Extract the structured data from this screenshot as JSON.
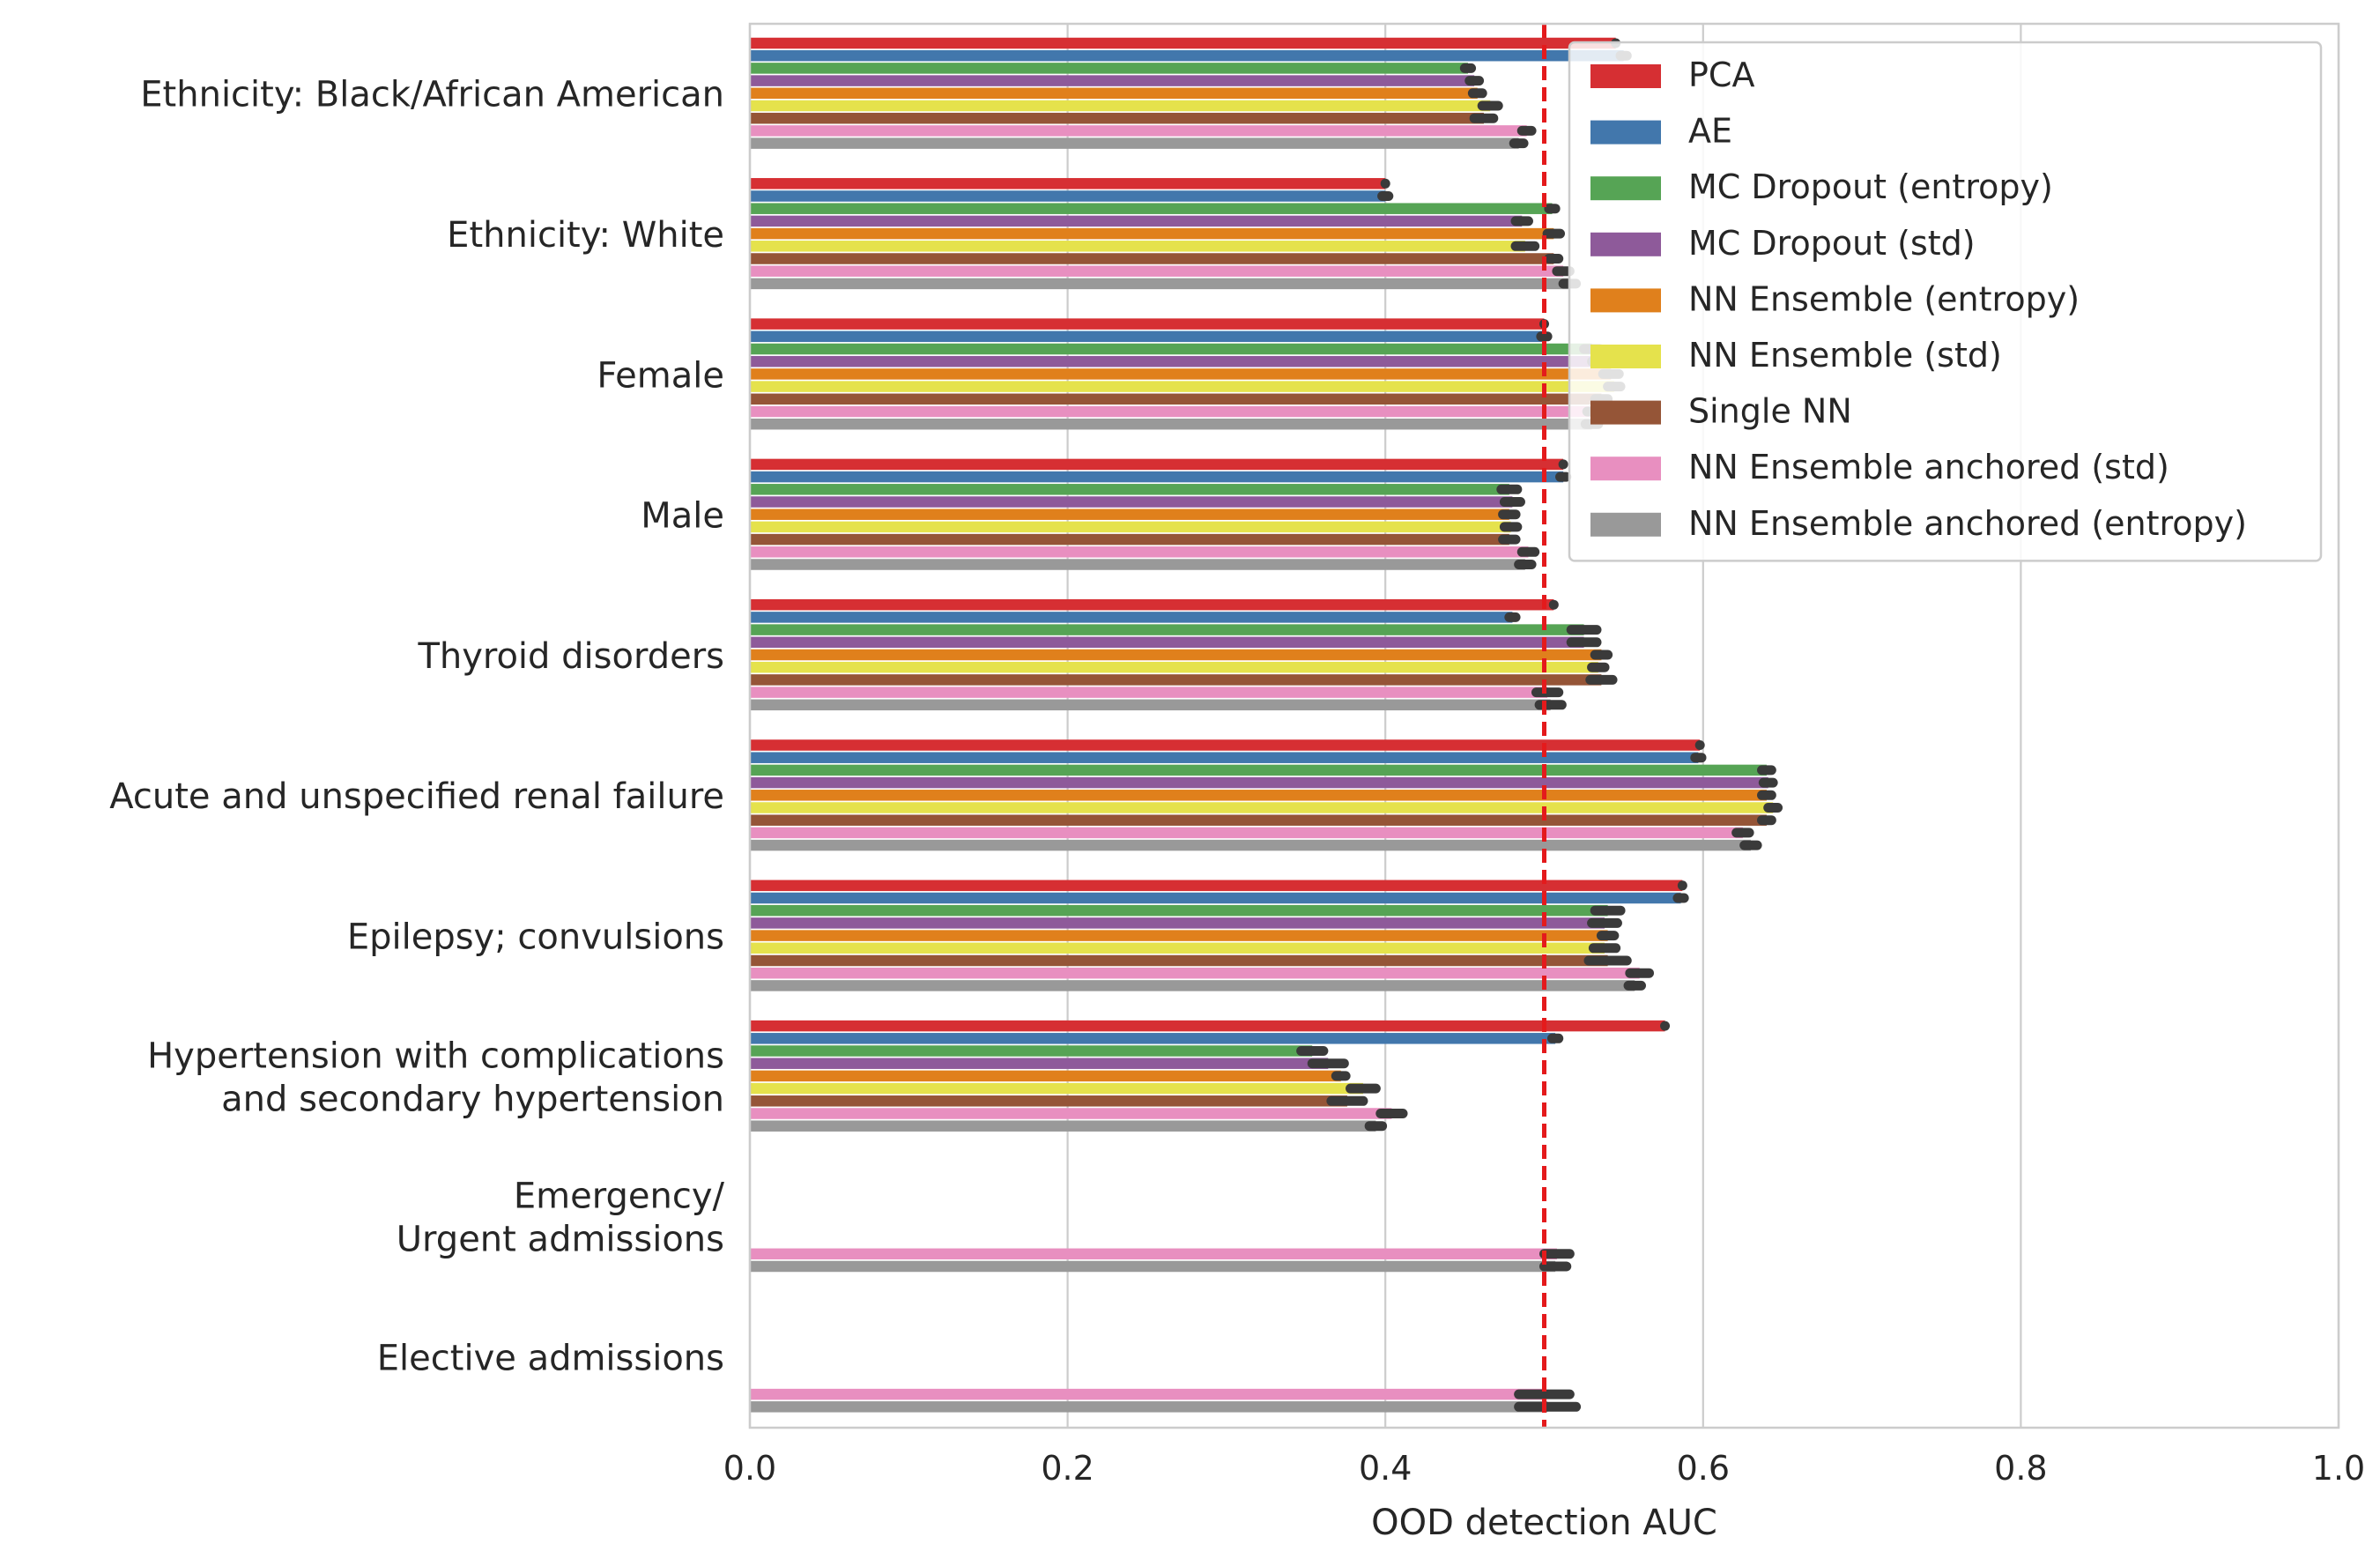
{
  "chart_data": {
    "type": "bar",
    "orientation": "horizontal",
    "xlabel": "OOD detection AUC",
    "ylabel": "",
    "title": "",
    "xlim": [
      0.0,
      1.0
    ],
    "xticks": [
      "0.0",
      "0.2",
      "0.4",
      "0.6",
      "0.8",
      "1.0"
    ],
    "grid": "vertical",
    "legend_position": "top-right",
    "reference_line": {
      "x": 0.5,
      "style": "dashed",
      "color": "#e41a1c"
    },
    "categories": [
      [
        "Ethnicity: Black/African American"
      ],
      [
        "Ethnicity: White"
      ],
      [
        "Female"
      ],
      [
        "Male"
      ],
      [
        "Thyroid disorders"
      ],
      [
        "Acute and unspecified renal failure"
      ],
      [
        "Epilepsy; convulsions"
      ],
      [
        "Hypertension with complications",
        "and secondary hypertension"
      ],
      [
        "Emergency/",
        "Urgent admissions"
      ],
      [
        "Elective admissions"
      ]
    ],
    "series": [
      {
        "name": "PCA",
        "color": "#d62f33",
        "values": [
          0.545,
          0.4,
          0.5,
          0.512,
          0.506,
          0.598,
          0.587,
          0.576,
          null,
          null
        ],
        "errors": [
          0,
          0,
          0,
          0,
          0,
          0,
          0,
          0,
          null,
          null
        ]
      },
      {
        "name": "AE",
        "color": "#4277ac",
        "values": [
          0.55,
          0.4,
          0.5,
          0.512,
          0.48,
          0.597,
          0.586,
          0.507,
          null,
          null
        ],
        "errors": [
          0.002,
          0.002,
          0.002,
          0.002,
          0.002,
          0.002,
          0.002,
          0.002,
          null,
          null
        ]
      },
      {
        "name": "MC Dropout (entropy)",
        "color": "#56a455",
        "values": [
          0.452,
          0.505,
          0.53,
          0.478,
          0.525,
          0.64,
          0.54,
          0.354,
          null,
          null
        ],
        "errors": [
          0.002,
          0.002,
          0.005,
          0.005,
          0.008,
          0.003,
          0.008,
          0.007,
          null,
          null
        ]
      },
      {
        "name": "MC Dropout (std)",
        "color": "#8e5a9a",
        "values": [
          0.456,
          0.486,
          0.536,
          0.48,
          0.525,
          0.641,
          0.538,
          0.364,
          null,
          null
        ],
        "errors": [
          0.003,
          0.004,
          0.006,
          0.005,
          0.008,
          0.003,
          0.008,
          0.01,
          null,
          null
        ]
      },
      {
        "name": "NN Ensemble (entropy)",
        "color": "#e0801c",
        "values": [
          0.458,
          0.506,
          0.542,
          0.478,
          0.536,
          0.64,
          0.54,
          0.372,
          null,
          null
        ],
        "errors": [
          0.003,
          0.004,
          0.005,
          0.004,
          0.004,
          0.003,
          0.004,
          0.003,
          null,
          null
        ]
      },
      {
        "name": "NN Ensemble (std)",
        "color": "#e5e24c",
        "values": [
          0.466,
          0.488,
          0.544,
          0.479,
          0.534,
          0.644,
          0.538,
          0.386,
          null,
          null
        ],
        "errors": [
          0.005,
          0.006,
          0.004,
          0.004,
          0.004,
          0.003,
          0.007,
          0.008,
          null,
          null
        ]
      },
      {
        "name": "Single NN",
        "color": "#955537",
        "values": [
          0.462,
          0.506,
          0.536,
          0.478,
          0.536,
          0.64,
          0.54,
          0.376,
          null,
          null
        ],
        "errors": [
          0.006,
          0.003,
          0.004,
          0.004,
          0.007,
          0.003,
          0.012,
          0.01,
          null,
          null
        ]
      },
      {
        "name": "NN Ensemble anchored (std)",
        "color": "#e88fc0",
        "values": [
          0.489,
          0.512,
          0.532,
          0.49,
          0.502,
          0.625,
          0.56,
          0.404,
          0.508,
          0.5
        ],
        "errors": [
          0.003,
          0.004,
          0.005,
          0.004,
          0.007,
          0.004,
          0.006,
          0.007,
          0.008,
          0.016
        ]
      },
      {
        "name": "NN Ensemble anchored (entropy)",
        "color": "#999999",
        "values": [
          0.484,
          0.516,
          0.53,
          0.488,
          0.504,
          0.63,
          0.557,
          0.394,
          0.507,
          0.502
        ],
        "errors": [
          0.003,
          0.004,
          0.004,
          0.004,
          0.007,
          0.004,
          0.004,
          0.004,
          0.007,
          0.018
        ]
      }
    ]
  }
}
